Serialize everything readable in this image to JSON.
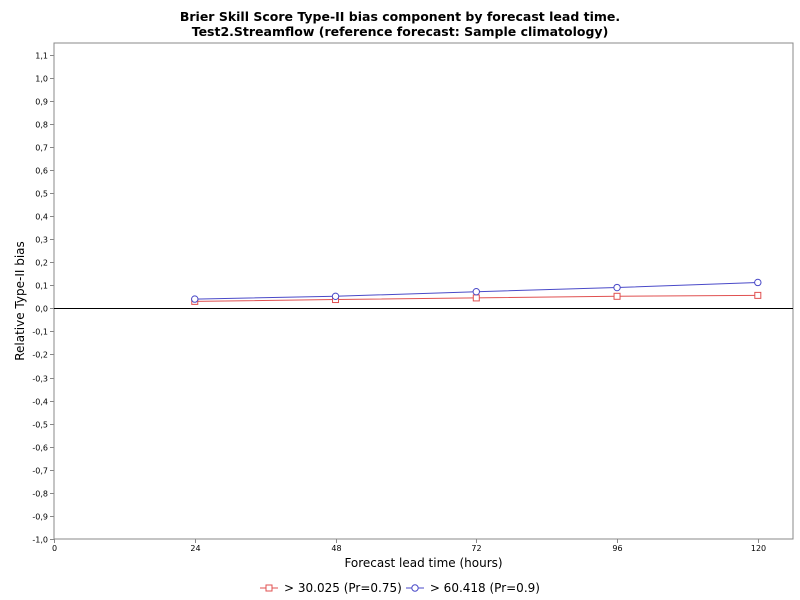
{
  "chart_data": {
    "type": "line",
    "title": "Brier Skill Score Type-II bias component by forecast lead time.",
    "subtitle": "Test2.Streamflow (reference forecast: Sample climatology)",
    "xlabel": "Forecast lead time (hours)",
    "ylabel": "Relative Type-II bias",
    "xlim": [
      0,
      126
    ],
    "ylim": [
      -1.0,
      1.15
    ],
    "xticks": [
      0,
      24,
      48,
      72,
      96,
      120
    ],
    "xtick_labels": [
      "0",
      "24",
      "48",
      "72",
      "96",
      "120"
    ],
    "yticks": [
      1.1,
      1.0,
      0.9,
      0.8,
      0.7,
      0.6,
      0.5,
      0.4,
      0.3,
      0.2,
      0.1,
      0.0,
      -0.1,
      -0.2,
      -0.3,
      -0.4,
      -0.5,
      -0.6,
      -0.7,
      -0.8,
      -0.9,
      -1.0
    ],
    "ytick_labels": [
      "1,1",
      "1,0",
      "0,9",
      "0,8",
      "0,7",
      "0,6",
      "0,5",
      "0,4",
      "0,3",
      "0,2",
      "0,1",
      "0,0",
      "-0,1",
      "-0,2",
      "-0,3",
      "-0,4",
      "-0,5",
      "-0,6",
      "-0,7",
      "-0,8",
      "-0,9",
      "-1,0"
    ],
    "grid": false,
    "zero_line": true,
    "legend_position": "bottom",
    "series": [
      {
        "name": "> 30.025 (Pr=0.75)",
        "marker": "square",
        "color": "#e05050",
        "x": [
          24,
          48,
          72,
          96,
          120
        ],
        "y": [
          0.03,
          0.038,
          0.045,
          0.052,
          0.056
        ]
      },
      {
        "name": "> 60.418 (Pr=0.9)",
        "marker": "circle",
        "color": "#4a4ac8",
        "x": [
          24,
          48,
          72,
          96,
          120
        ],
        "y": [
          0.04,
          0.052,
          0.072,
          0.09,
          0.112
        ]
      }
    ]
  }
}
